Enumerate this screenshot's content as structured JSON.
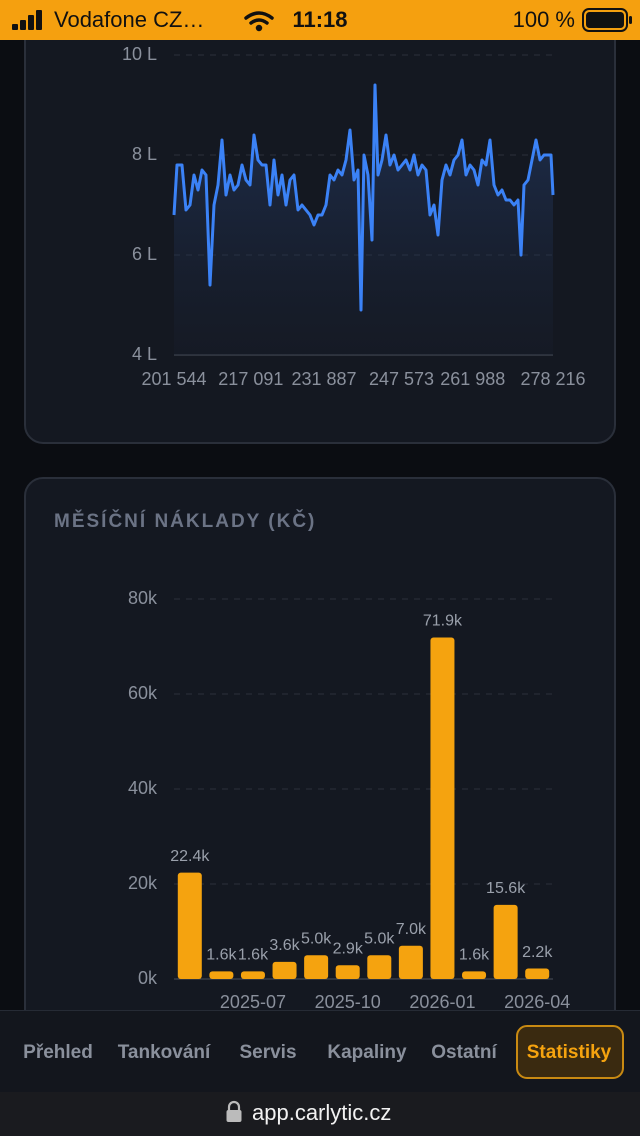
{
  "status_bar": {
    "carrier": "Vodafone CZ…",
    "time": "11:18",
    "battery": "100 %"
  },
  "chart_data": [
    {
      "type": "line",
      "color": "#3b82f6",
      "x": [
        201544,
        202151,
        203162,
        203972,
        204781,
        205590,
        206399,
        207208,
        208018,
        208827,
        209636,
        210445,
        211254,
        212064,
        212873,
        213682,
        214491,
        215300,
        216110,
        216919,
        217728,
        218537,
        219346,
        220156,
        220965,
        221774,
        222583,
        223392,
        224202,
        225011,
        225820,
        226629,
        227438,
        228248,
        229057,
        229866,
        230675,
        231484,
        232294,
        233103,
        233912,
        234721,
        235530,
        236340,
        237149,
        237958,
        238767,
        239374,
        239981,
        240790,
        241599,
        242206,
        242813,
        243622,
        244432,
        245241,
        246050,
        246859,
        247668,
        248478,
        249287,
        250096,
        250905,
        251714,
        252524,
        253333,
        254142,
        254951,
        255760,
        256570,
        257379,
        258188,
        258997,
        259806,
        260616,
        261425,
        262234,
        263043,
        263852,
        264662,
        265471,
        266280,
        267089,
        267898,
        268708,
        269517,
        270326,
        271135,
        271742,
        272349,
        273158,
        273967,
        274777,
        275586,
        276395,
        277204,
        277811,
        278216
      ],
      "values": [
        6.8,
        7.8,
        7.8,
        6.9,
        7.0,
        7.6,
        7.3,
        7.7,
        7.6,
        5.4,
        7.0,
        7.4,
        8.3,
        7.2,
        7.6,
        7.3,
        7.4,
        7.8,
        7.5,
        7.4,
        8.4,
        7.9,
        7.8,
        7.8,
        7.0,
        7.9,
        7.2,
        7.6,
        7.0,
        7.5,
        7.6,
        6.9,
        7.0,
        6.9,
        6.8,
        6.6,
        6.8,
        6.8,
        7.0,
        7.6,
        7.5,
        7.7,
        7.6,
        7.9,
        8.5,
        7.5,
        7.7,
        4.9,
        8.0,
        7.6,
        6.3,
        9.4,
        7.6,
        7.9,
        8.4,
        7.8,
        8.0,
        7.7,
        7.8,
        7.9,
        7.7,
        8.0,
        7.6,
        7.8,
        7.7,
        6.8,
        7.0,
        6.4,
        7.5,
        7.8,
        7.6,
        7.9,
        8.0,
        8.3,
        7.6,
        7.8,
        7.7,
        7.4,
        7.9,
        7.8,
        8.3,
        7.4,
        7.2,
        7.3,
        7.1,
        7.1,
        7.0,
        7.1,
        6.0,
        7.4,
        7.5,
        7.9,
        8.3,
        7.9,
        8.0,
        8.0,
        8.0,
        7.2
      ],
      "xlim": [
        201544,
        278216
      ],
      "xticks": [
        {
          "value": 201544,
          "label": "201 544"
        },
        {
          "value": 217091,
          "label": "217 091"
        },
        {
          "value": 231887,
          "label": "231 887"
        },
        {
          "value": 247573,
          "label": "247 573"
        },
        {
          "value": 261988,
          "label": "261 988"
        },
        {
          "value": 278216,
          "label": "278 216"
        }
      ],
      "ylim": [
        4,
        10
      ],
      "yticks": [
        {
          "value": 4,
          "label": "4 L"
        },
        {
          "value": 6,
          "label": "6 L"
        },
        {
          "value": 8,
          "label": "8 L"
        },
        {
          "value": 10,
          "label": "10 L"
        }
      ],
      "grid": true
    },
    {
      "type": "bar",
      "title": "MĚSÍČNÍ NÁKLADY (KČ)",
      "color": "#f5a30f",
      "categories": [
        null,
        null,
        "2025-07",
        null,
        null,
        "2025-10",
        null,
        null,
        "2026-01",
        null,
        null,
        "2026-04"
      ],
      "values": [
        22400,
        1600,
        1600,
        3600,
        5000,
        2900,
        5000,
        7000,
        71900,
        1600,
        15600,
        2200
      ],
      "value_labels": [
        "22.4k",
        "1.6k",
        "1.6k",
        "3.6k",
        "5.0k",
        "2.9k",
        "5.0k",
        "7.0k",
        "71.9k",
        "1.6k",
        "15.6k",
        "2.2k"
      ],
      "ylim": [
        0,
        80000
      ],
      "yticks": [
        {
          "value": 0,
          "label": "0k"
        },
        {
          "value": 20000,
          "label": "20k"
        },
        {
          "value": 40000,
          "label": "40k"
        },
        {
          "value": 60000,
          "label": "60k"
        },
        {
          "value": 80000,
          "label": "80k"
        }
      ],
      "grid": true
    }
  ],
  "tabs": [
    "Přehled",
    "Tankování",
    "Servis",
    "Kapaliny",
    "Ostatní",
    "Statistiky"
  ],
  "url": "app.carlytic.cz"
}
